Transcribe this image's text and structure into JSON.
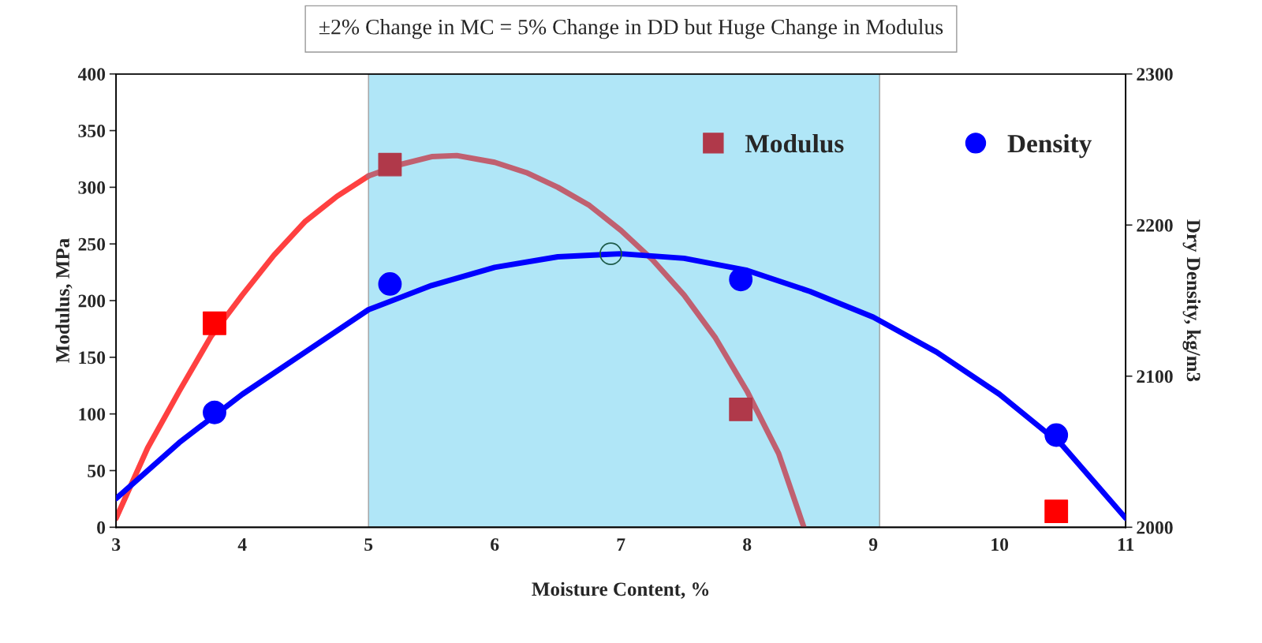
{
  "chart_data": {
    "type": "line",
    "title": "±2% Change in MC = 5% Change in DD but Huge Change in Modulus",
    "xlabel": "Moisture Content, %",
    "ylabel": "Modulus, MPa",
    "y2label": "Dry Density, kg/m3",
    "xlim": [
      3,
      11
    ],
    "xticks": [
      3,
      4,
      5,
      6,
      7,
      8,
      9,
      10,
      11
    ],
    "ylim": [
      0,
      400
    ],
    "yticks": [
      0,
      50,
      100,
      150,
      200,
      250,
      300,
      350,
      400
    ],
    "y2lim": [
      2000,
      2300
    ],
    "y2ticks": [
      2000,
      2100,
      2200,
      2300
    ],
    "grid": false,
    "legend": "top right",
    "bands": [
      {
        "axis": "x",
        "from": 5,
        "to": 9.05,
        "color": "#b0e6f7"
      }
    ],
    "series": [
      {
        "color": "#ff4040",
        "x": [
          3,
          3.25,
          3.5,
          3.75,
          4,
          4.25,
          4.5,
          4.75,
          5
        ],
        "values": [
          8,
          70,
          120,
          168,
          205,
          240,
          270,
          292,
          310
        ]
      },
      {
        "color": "#c06070",
        "x": [
          5,
          5.25,
          5.5,
          5.7,
          6,
          6.25,
          6.5,
          6.75,
          7,
          7.25,
          7.5,
          7.75,
          8,
          8.25,
          8.45
        ],
        "values": [
          310,
          320,
          327,
          328,
          322,
          313,
          300,
          284,
          262,
          236,
          205,
          167,
          120,
          65,
          0
        ]
      },
      {
        "color": "#0000ff",
        "axis": "y2",
        "x": [
          3,
          3.5,
          4,
          4.5,
          5,
          5.5,
          6,
          6.5,
          7,
          7.5,
          8,
          8.5,
          9,
          9.5,
          10,
          10.5,
          11
        ],
        "values": [
          2019,
          2056,
          2088,
          2116,
          2144,
          2160,
          2172,
          2179,
          2181,
          2178,
          2170,
          2156,
          2139,
          2116,
          2088,
          2054,
          2006
        ]
      },
      {
        "type": "scatter",
        "name": "Modulus",
        "marker": "square",
        "color": "#b0394a",
        "colors": [
          "#ff0000",
          "#b0394a",
          "#b0394a",
          "#ff0000"
        ],
        "x": [
          3.78,
          5.17,
          7.95,
          10.45
        ],
        "values": [
          180,
          320,
          104,
          14
        ]
      },
      {
        "type": "scatter",
        "name": "Density",
        "marker": "circle",
        "color": "#0000ff",
        "axis": "y2",
        "x": [
          3.78,
          5.17,
          7.95,
          10.45
        ],
        "values": [
          2076,
          2161,
          2164,
          2061
        ]
      },
      {
        "type": "scatter",
        "marker": "circle",
        "color": "#1f5c4a",
        "axis": "y2",
        "x": [
          6.92
        ],
        "values": [
          2181
        ]
      }
    ]
  }
}
